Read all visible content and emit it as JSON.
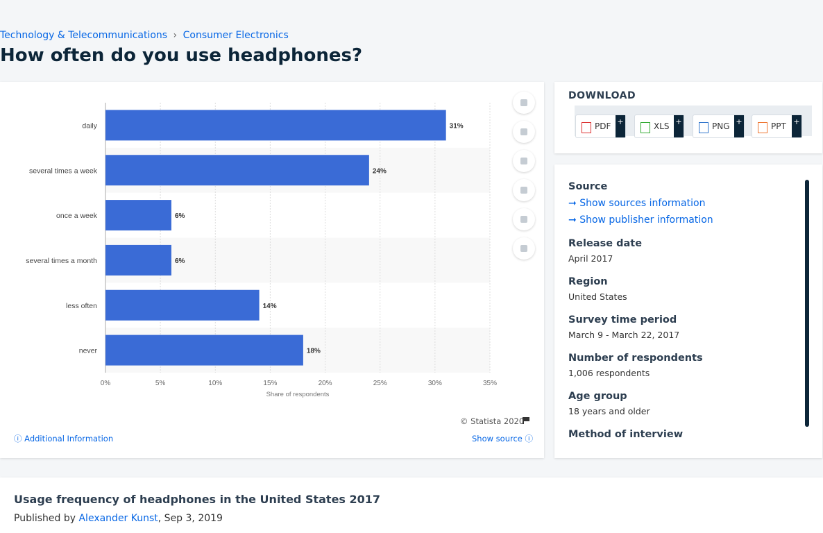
{
  "breadcrumb": [
    "Technology & Telecommunications",
    "Consumer Electronics"
  ],
  "breadcrumb_separator": "›",
  "page_title": "How often do you use headphones?",
  "chart_data": {
    "type": "bar",
    "orientation": "horizontal",
    "categories": [
      "daily",
      "several times a week",
      "once a week",
      "several times a month",
      "less often",
      "never"
    ],
    "values": [
      31,
      24,
      6,
      6,
      14,
      18
    ],
    "value_labels": [
      "31%",
      "24%",
      "6%",
      "6%",
      "14%",
      "18%"
    ],
    "color": "#3a6bd6",
    "xlim": [
      0,
      35
    ],
    "xticks": [
      {
        "value": 0,
        "label": "0%"
      },
      {
        "value": 5,
        "label": "5%"
      },
      {
        "value": 10,
        "label": "10%"
      },
      {
        "value": 15,
        "label": "15%"
      },
      {
        "value": 20,
        "label": "20%"
      },
      {
        "value": 25,
        "label": "25%"
      },
      {
        "value": 30,
        "label": "30%"
      },
      {
        "value": 35,
        "label": "35%"
      }
    ],
    "xlabel": "Share of respondents",
    "grid": true
  },
  "chart_footer": {
    "credit": "© Statista 2020",
    "additional": "Additional Information",
    "show_source": "Show source"
  },
  "download": {
    "title": "DOWNLOAD",
    "buttons": [
      "PDF",
      "XLS",
      "PNG",
      "PPT"
    ],
    "plus": "+"
  },
  "details": {
    "source_label": "Source",
    "source_links": [
      "Show sources information",
      "Show publisher information"
    ],
    "items": [
      {
        "label": "Release date",
        "value": "April 2017"
      },
      {
        "label": "Region",
        "value": "United States"
      },
      {
        "label": "Survey time period",
        "value": "March 9 - March 22, 2017"
      },
      {
        "label": "Number of respondents",
        "value": "1,006 respondents"
      },
      {
        "label": "Age group",
        "value": "18 years and older"
      }
    ],
    "last_label": "Method of interview"
  },
  "footer": {
    "title": "Usage frequency of headphones in the United States 2017",
    "published": "Published by",
    "author": "Alexander Kunst",
    "date": ", Sep 3, 2019"
  }
}
